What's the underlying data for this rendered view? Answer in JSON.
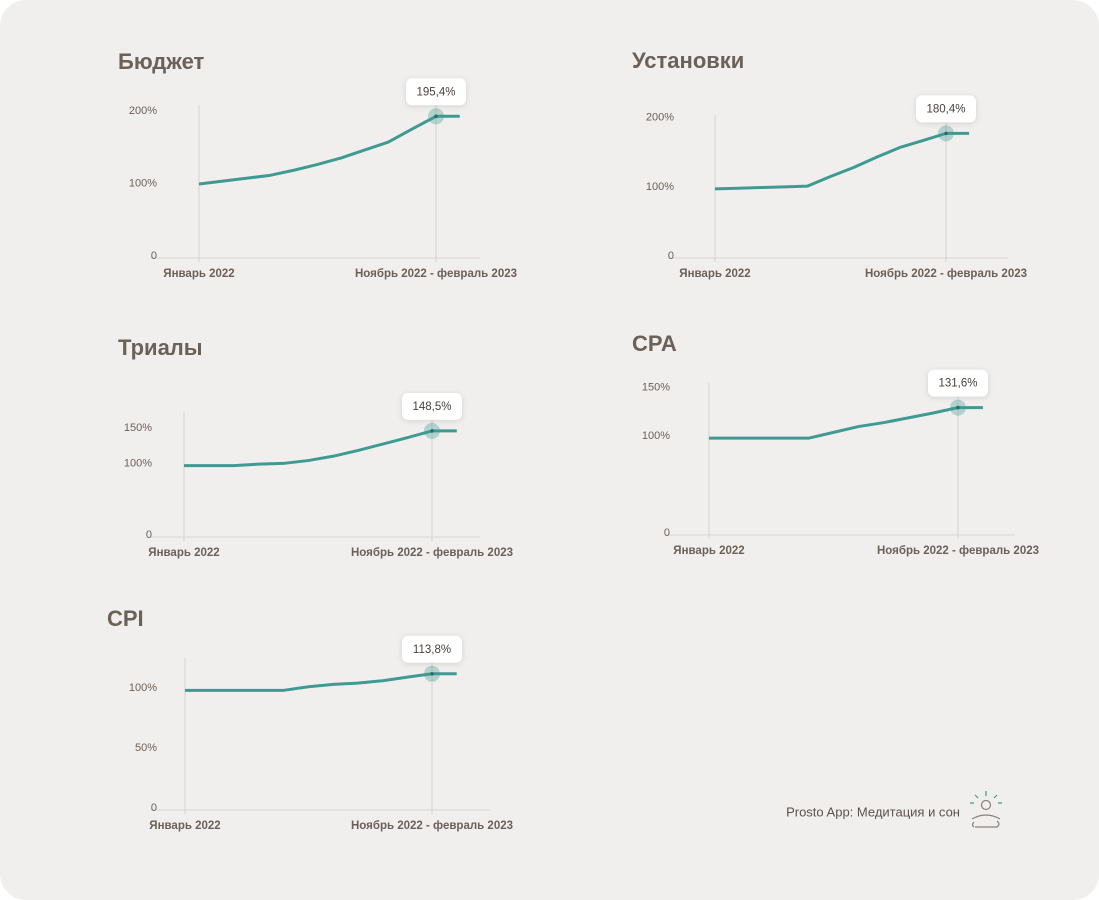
{
  "chart_data": [
    {
      "type": "line",
      "title": "Бюджет",
      "color": "#3f9a94",
      "categories": [
        "Январь 2022",
        null,
        null,
        null,
        null,
        null,
        null,
        null,
        null,
        null,
        "Ноябрь 2022 - февраль 2023",
        null
      ],
      "values": [
        102,
        106,
        110,
        114,
        121,
        129,
        138,
        149,
        160,
        178,
        195.4,
        195.4
      ],
      "value_labels": [
        null,
        null,
        null,
        null,
        null,
        null,
        null,
        null,
        null,
        null,
        "195,4%",
        null
      ],
      "ylim": [
        0,
        211
      ],
      "yticks": [
        0,
        {
          "value": 100,
          "label": "100%"
        },
        {
          "value": 200,
          "label": "200%"
        }
      ]
    },
    {
      "type": "line",
      "title": "Установки",
      "color": "#3f9a94",
      "categories": [
        "Январь 2022",
        null,
        null,
        null,
        null,
        null,
        null,
        null,
        null,
        null,
        "Ноябрь 2022 - февраль 2023",
        null
      ],
      "values": [
        100,
        101,
        102,
        103,
        104,
        118,
        131,
        146,
        160,
        170,
        180.4,
        180.4
      ],
      "value_labels": [
        null,
        null,
        null,
        null,
        null,
        null,
        null,
        null,
        null,
        null,
        "180,4%",
        null
      ],
      "ylim": [
        0,
        207
      ],
      "yticks": [
        0,
        {
          "value": 100,
          "label": "100%"
        },
        {
          "value": 200,
          "label": "200%"
        }
      ]
    },
    {
      "type": "line",
      "title": "Триалы",
      "color": "#3f9a94",
      "categories": [
        "Январь 2022",
        null,
        null,
        null,
        null,
        null,
        null,
        null,
        null,
        null,
        "Ноябрь 2022 - февраль 2023",
        null
      ],
      "values": [
        100,
        100,
        100,
        102,
        103,
        107,
        113,
        121,
        130,
        139,
        148.5,
        148.5
      ],
      "value_labels": [
        null,
        null,
        null,
        null,
        null,
        null,
        null,
        null,
        null,
        null,
        "148,5%",
        null
      ],
      "ylim": [
        0,
        175
      ],
      "yticks": [
        0,
        {
          "value": 100,
          "label": "100%"
        },
        {
          "value": 150,
          "label": "150%"
        }
      ]
    },
    {
      "type": "line",
      "title": "CPA",
      "color": "#3f9a94",
      "categories": [
        "Январь 2022",
        null,
        null,
        null,
        null,
        null,
        null,
        null,
        null,
        null,
        "Ноябрь 2022 - февраль 2023",
        null
      ],
      "values": [
        100,
        100,
        100,
        100,
        100,
        106,
        112,
        116,
        121,
        126,
        131.6,
        131.6
      ],
      "value_labels": [
        null,
        null,
        null,
        null,
        null,
        null,
        null,
        null,
        null,
        null,
        "131,6%",
        null
      ],
      "ylim": [
        0,
        157
      ],
      "yticks": [
        0,
        {
          "value": 100,
          "label": "100%"
        },
        {
          "value": 150,
          "label": "150%"
        }
      ]
    },
    {
      "type": "line",
      "title": "CPI",
      "color": "#3f9a94",
      "categories": [
        "Январь 2022",
        null,
        null,
        null,
        null,
        null,
        null,
        null,
        null,
        null,
        "Ноябрь 2022 - февраль 2023",
        null
      ],
      "values": [
        100,
        100,
        100,
        100,
        100,
        103,
        105,
        106,
        108,
        111,
        113.8,
        113.8
      ],
      "value_labels": [
        null,
        null,
        null,
        null,
        null,
        null,
        null,
        null,
        null,
        null,
        "113,8%",
        null
      ],
      "ylim": [
        0,
        127
      ],
      "yticks": [
        0,
        {
          "value": 50,
          "label": "50%"
        },
        {
          "value": 100,
          "label": "100%"
        }
      ]
    }
  ],
  "footer": "Prosto App: Медитация и сон"
}
